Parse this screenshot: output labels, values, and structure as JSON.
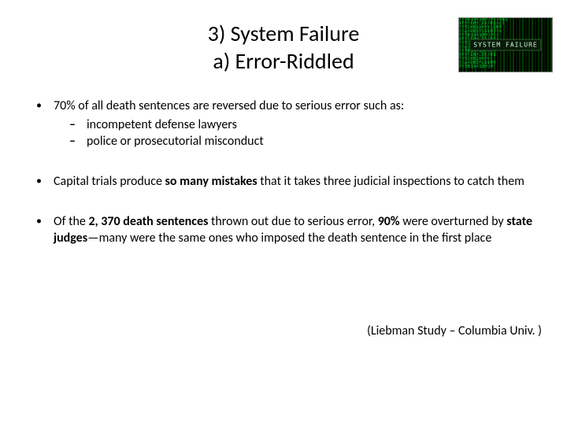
{
  "title": {
    "line1": "3) System Failure",
    "line2": "a) Error-Riddled",
    "fontsize": 28,
    "color": "#000000"
  },
  "thumbnail": {
    "label": "SYSTEM FAILURE",
    "bg_primary": "#000000",
    "text_color": "#c9ffd1",
    "glow_color": "#00ff41"
  },
  "bullets": [
    {
      "text_parts": [
        {
          "t": "70% of all death sentences are reversed due to serious error ",
          "bold": false
        },
        {
          "t": "such as:",
          "bold": false
        }
      ],
      "sub": [
        "incompetent defense lawyers",
        "police or prosecutorial misconduct"
      ]
    },
    {
      "text_parts": [
        {
          "t": "Capital trials produce ",
          "bold": false
        },
        {
          "t": "so many mistakes ",
          "bold": true
        },
        {
          "t": "that it takes three judicial inspections to catch them",
          "bold": false
        }
      ],
      "sub": []
    },
    {
      "text_parts": [
        {
          "t": "Of the ",
          "bold": false
        },
        {
          "t": "2, 370 death sentences ",
          "bold": true
        },
        {
          "t": "thrown out due to serious error, ",
          "bold": false
        },
        {
          "t": "90% ",
          "bold": true
        },
        {
          "t": "were overturned by ",
          "bold": false
        },
        {
          "t": "state judges",
          "bold": true
        },
        {
          "t": "—many were the same ones who imposed the death sentence in the first place",
          "bold": false
        }
      ],
      "sub": []
    }
  ],
  "citation": "(Liebman Study – Columbia Univ. )",
  "body_fontsize": 16,
  "background_color": "#ffffff"
}
